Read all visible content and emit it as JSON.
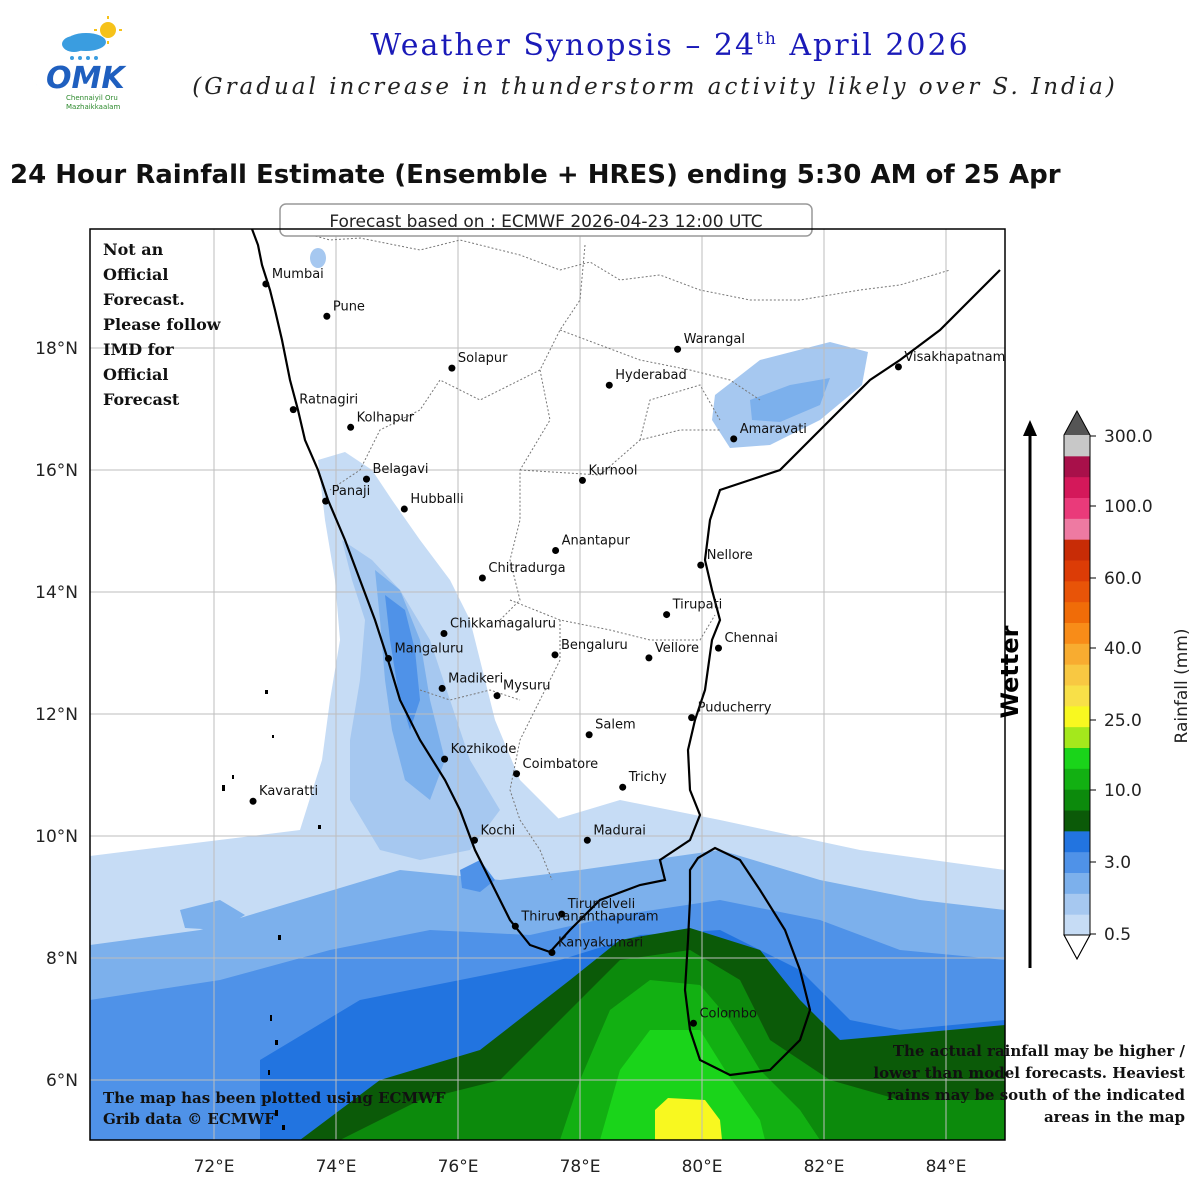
{
  "header": {
    "logo_text": "OMK",
    "logo_sub": "Chennaiyil Oru Mazhaikkaalam",
    "title_pre": "Weather Synopsis – 24",
    "title_sup": "th",
    "title_post": " April 2026",
    "subtitle": "(Gradual increase in thunderstorm activity likely over S. India)"
  },
  "map": {
    "title": "24 Hour Rainfall Estimate (Ensemble + HRES) ending 5:30 AM of 25 Apr",
    "forecast_box": "Forecast based on : ECMWF 2026-04-23 12:00 UTC",
    "lat_labels": [
      "18°N",
      "16°N",
      "14°N",
      "12°N",
      "10°N",
      "8°N",
      "6°N"
    ],
    "lon_labels": [
      "72°E",
      "74°E",
      "76°E",
      "78°E",
      "80°E",
      "82°E",
      "84°E"
    ],
    "cities": [
      {
        "name": "Mumbai",
        "lon": 72.85,
        "lat": 19.05
      },
      {
        "name": "Pune",
        "lon": 73.85,
        "lat": 18.52
      },
      {
        "name": "Solapur",
        "lon": 75.9,
        "lat": 17.67
      },
      {
        "name": "Warangal",
        "lon": 79.6,
        "lat": 17.98
      },
      {
        "name": "Hyderabad",
        "lon": 78.48,
        "lat": 17.39
      },
      {
        "name": "Visakhapatnam",
        "lon": 83.22,
        "lat": 17.69
      },
      {
        "name": "Ratnagiri",
        "lon": 73.3,
        "lat": 16.99
      },
      {
        "name": "Kolhapur",
        "lon": 74.24,
        "lat": 16.7
      },
      {
        "name": "Amaravati",
        "lon": 80.52,
        "lat": 16.51
      },
      {
        "name": "Belagavi",
        "lon": 74.5,
        "lat": 15.85
      },
      {
        "name": "Kurnool",
        "lon": 78.04,
        "lat": 15.83
      },
      {
        "name": "Panaji",
        "lon": 73.83,
        "lat": 15.49
      },
      {
        "name": "Hubballi",
        "lon": 75.12,
        "lat": 15.36
      },
      {
        "name": "Anantapur",
        "lon": 77.6,
        "lat": 14.68
      },
      {
        "name": "Nellore",
        "lon": 79.98,
        "lat": 14.44
      },
      {
        "name": "Chitradurga",
        "lon": 76.4,
        "lat": 14.23
      },
      {
        "name": "Tirupati",
        "lon": 79.42,
        "lat": 13.63
      },
      {
        "name": "Chikkamagaluru",
        "lon": 75.77,
        "lat": 13.32
      },
      {
        "name": "Chennai",
        "lon": 80.27,
        "lat": 13.08
      },
      {
        "name": "Bengaluru",
        "lon": 77.59,
        "lat": 12.97
      },
      {
        "name": "Vellore",
        "lon": 79.13,
        "lat": 12.92
      },
      {
        "name": "Mangaluru",
        "lon": 74.86,
        "lat": 12.91
      },
      {
        "name": "Madikeri",
        "lon": 75.74,
        "lat": 12.42
      },
      {
        "name": "Mysuru",
        "lon": 76.64,
        "lat": 12.3
      },
      {
        "name": "Puducherry",
        "lon": 79.83,
        "lat": 11.94
      },
      {
        "name": "Salem",
        "lon": 78.15,
        "lat": 11.66
      },
      {
        "name": "Kozhikode",
        "lon": 75.78,
        "lat": 11.26
      },
      {
        "name": "Coimbatore",
        "lon": 76.96,
        "lat": 11.02
      },
      {
        "name": "Trichy",
        "lon": 78.7,
        "lat": 10.8
      },
      {
        "name": "Kavaratti",
        "lon": 72.64,
        "lat": 10.57
      },
      {
        "name": "Kochi",
        "lon": 76.27,
        "lat": 9.93
      },
      {
        "name": "Madurai",
        "lon": 78.12,
        "lat": 9.93
      },
      {
        "name": "Tirunelveli",
        "lon": 77.7,
        "lat": 8.72
      },
      {
        "name": "Thiruvananthapuram",
        "lon": 76.94,
        "lat": 8.52
      },
      {
        "name": "Kanyakumari",
        "lon": 77.54,
        "lat": 8.09
      },
      {
        "name": "Colombo",
        "lon": 79.86,
        "lat": 6.93
      }
    ]
  },
  "colorbar": {
    "label": "Rainfall (mm)",
    "wetter": "Wetter",
    "ticks": [
      "300.0",
      "100.0",
      "60.0",
      "40.0",
      "25.0",
      "10.0",
      "3.0",
      "0.5"
    ],
    "colors": [
      "#c6dcf5",
      "#a6c8f0",
      "#7cb0ec",
      "#4f92e8",
      "#2274e0",
      "#0b5a08",
      "#0c8a0c",
      "#12b012",
      "#1ad41a",
      "#a4e81c",
      "#f8f820",
      "#f8e048",
      "#f8c842",
      "#f8ac30",
      "#f88c18",
      "#f06c08",
      "#e85408",
      "#dc3c06",
      "#c82c06",
      "#ee7aa2",
      "#ea3a7a",
      "#d4185a",
      "#a8104a",
      "#c8c8c8"
    ]
  },
  "notes": {
    "left": "Not an Official Forecast. Please follow IMD for Official Forecast",
    "right": "The actual rainfall may be higher / lower than model forecasts. Heaviest rains may be south of the indicated areas in the map",
    "bottom": "The map has been plotted using ECMWF Grib data © ECMWF"
  }
}
